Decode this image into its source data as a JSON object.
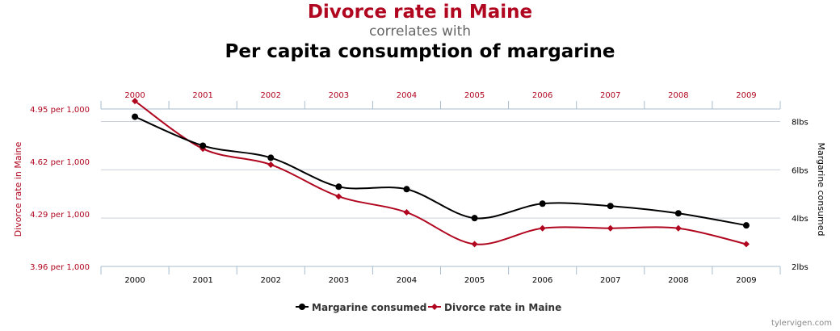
{
  "header": {
    "title_primary": "Divorce rate in Maine",
    "connector": "correlates with",
    "title_secondary": "Per capita consumption of margarine"
  },
  "credit": "tylervigen.com",
  "colors": {
    "divorce": "#b0061f",
    "margarine": "#000000",
    "grid": "#c8d2dc",
    "axis": "#a8bccc"
  },
  "chart_data": {
    "type": "line",
    "x": [
      "2000",
      "2001",
      "2002",
      "2003",
      "2004",
      "2005",
      "2006",
      "2007",
      "2008",
      "2009"
    ],
    "legend_position": "bottom-center",
    "grid": true,
    "left_axis": {
      "label": "Divorce rate in Maine",
      "ticks": [
        "3.96 per 1,000",
        "4.29 per 1,000",
        "4.62 per 1,000",
        "4.95 per 1,000"
      ],
      "tick_values": [
        3.96,
        4.29,
        4.62,
        4.95
      ],
      "range": [
        3.96,
        4.95
      ]
    },
    "right_axis": {
      "label": "Margarine consumed",
      "ticks": [
        "2lbs",
        "4lbs",
        "6lbs",
        "8lbs"
      ],
      "tick_values": [
        2,
        4,
        6,
        8
      ],
      "range": [
        2,
        8.52
      ]
    },
    "series": [
      {
        "name": "Margarine consumed",
        "axis": "right",
        "marker": "circle",
        "values": [
          8.2,
          7.0,
          6.5,
          5.3,
          5.2,
          4.0,
          4.6,
          4.5,
          4.2,
          3.7
        ]
      },
      {
        "name": "Divorce rate in Maine",
        "axis": "left",
        "marker": "diamond",
        "values": [
          5.0,
          4.7,
          4.6,
          4.4,
          4.3,
          4.1,
          4.2,
          4.2,
          4.2,
          4.1
        ]
      }
    ]
  }
}
